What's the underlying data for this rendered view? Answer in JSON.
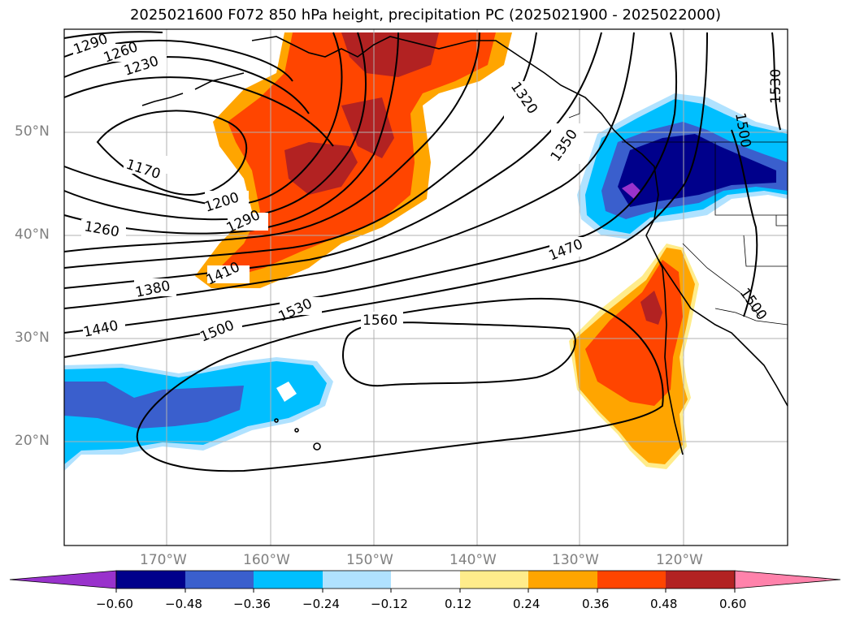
{
  "title": "2025021600 F072 850 hPa height, precipitation PC (2025021900 - 2025022000)",
  "lat_labels": [
    "50°N",
    "40°N",
    "30°N",
    "20°N"
  ],
  "lon_labels": [
    "170°W",
    "160°W",
    "150°W",
    "140°W",
    "130°W",
    "120°W"
  ],
  "contour_labels": [
    "1290",
    "1260",
    "1230",
    "1170",
    "1200",
    "1260",
    "1290",
    "1410",
    "1380",
    "1440",
    "1500",
    "1530",
    "1560",
    "1320",
    "1350",
    "1470",
    "1500",
    "1500",
    "1530"
  ],
  "colorbar": {
    "ticks": [
      "−0.60",
      "−0.48",
      "−0.36",
      "−0.24",
      "−0.12",
      "0.12",
      "0.24",
      "0.36",
      "0.48",
      "0.60"
    ],
    "colors": [
      "#9932cc",
      "#00008b",
      "#3a5fcd",
      "#00bfff",
      "#b0e2ff",
      "#ffffff",
      "#ffec8b",
      "#ffa500",
      "#ff4500",
      "#b22222",
      "#ff82ab"
    ]
  }
}
